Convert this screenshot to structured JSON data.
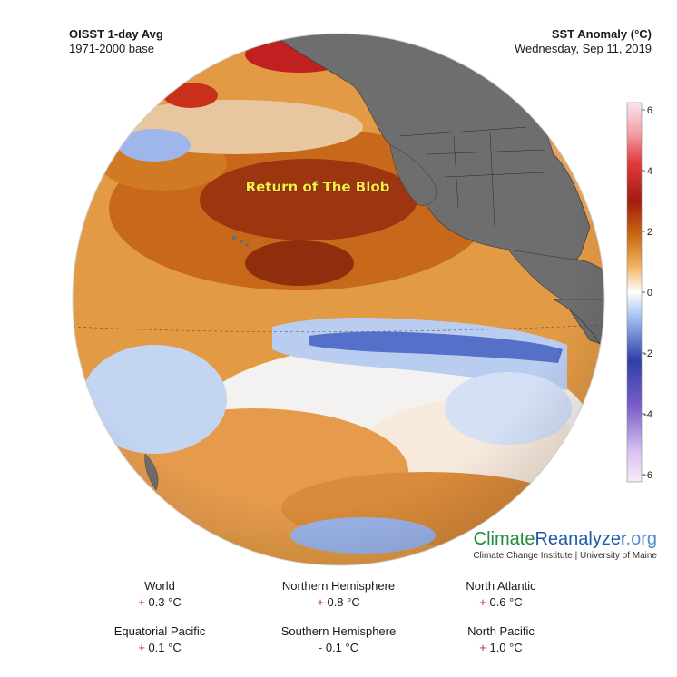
{
  "header": {
    "left_title": "OISST 1-day Avg",
    "left_subtitle": "1971-2000 base",
    "right_title": "SST Anomaly (°C)",
    "right_date": "Wednesday, Sep 11, 2019"
  },
  "colorbar": {
    "ticks": [
      "6",
      "4",
      "2",
      "0",
      "-2",
      "-4",
      "-6"
    ],
    "colors": [
      "#f8d5e0",
      "#e05050",
      "#a01010",
      "#c06010",
      "#f0a050",
      "#ffffff",
      "#a0c0f0",
      "#2a3aa0",
      "#8060c0",
      "#f0e0f5"
    ]
  },
  "map": {
    "callout": "Return of The Blob",
    "land_color": "#6e6e6e",
    "ocean_warm": "#d8841f",
    "ocean_hot": "#8b2a0a",
    "ocean_cool": "#5f7fd6"
  },
  "brand": {
    "part1": "Climate",
    "part2": "Reanalyzer",
    "part3": ".org",
    "subtitle": "Climate Change Institute | University of Maine"
  },
  "stats": [
    {
      "label": "World",
      "sign": "+",
      "value": "0.3 °C"
    },
    {
      "label": "Northern Hemisphere",
      "sign": "+",
      "value": "0.8 °C"
    },
    {
      "label": "North Atlantic",
      "sign": "+",
      "value": "0.6 °C"
    },
    {
      "label": "Equatorial Pacific",
      "sign": "+",
      "value": "0.1 °C"
    },
    {
      "label": "Southern Hemisphere",
      "sign": "-",
      "value": "0.1 °C"
    },
    {
      "label": "North Pacific",
      "sign": "+",
      "value": "1.0 °C"
    }
  ]
}
